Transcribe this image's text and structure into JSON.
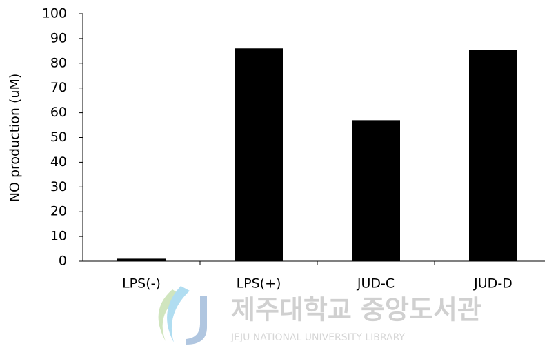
{
  "chart_data": {
    "type": "bar",
    "y_label": "NO production (uM)",
    "categories": [
      "LPS(-)",
      "LPS(+)",
      "JUD-C",
      "JUD-D"
    ],
    "values": [
      1,
      86,
      57,
      85.5
    ],
    "color": "#000000",
    "ylim": [
      0,
      100
    ],
    "yticks": [
      0,
      10,
      20,
      30,
      40,
      50,
      60,
      70,
      80,
      90,
      100
    ],
    "grid": false,
    "watermark": [
      "제주대학교 중앙도서관",
      "JEJU NATIONAL UNIVERSITY LIBRARY"
    ]
  }
}
